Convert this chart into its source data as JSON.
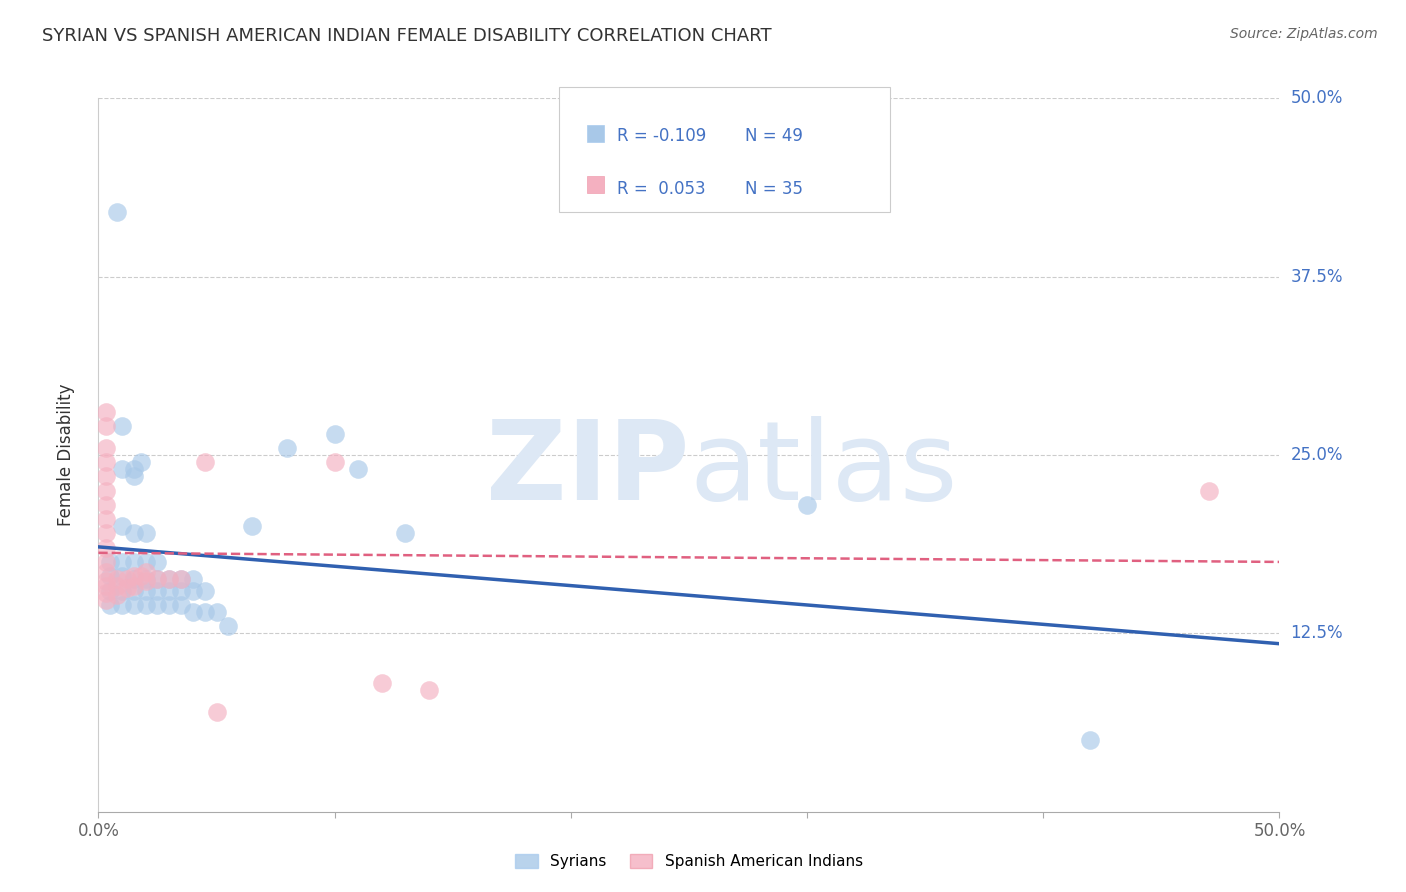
{
  "title": "SYRIAN VS SPANISH AMERICAN INDIAN FEMALE DISABILITY CORRELATION CHART",
  "source": "Source: ZipAtlas.com",
  "ylabel": "Female Disability",
  "ytick_labels": [
    "12.5%",
    "25.0%",
    "37.5%",
    "50.0%"
  ],
  "legend_blue_r": "-0.109",
  "legend_blue_n": "49",
  "legend_pink_r": "0.053",
  "legend_pink_n": "35",
  "legend_blue_label": "Syrians",
  "legend_pink_label": "Spanish American Indians",
  "blue_color": "#a8c8e8",
  "pink_color": "#f4b0c0",
  "blue_line_color": "#3060b0",
  "pink_line_color": "#e06080",
  "blue_scatter": [
    [
      0.008,
      0.42
    ],
    [
      0.01,
      0.27
    ],
    [
      0.01,
      0.24
    ],
    [
      0.015,
      0.24
    ],
    [
      0.015,
      0.235
    ],
    [
      0.018,
      0.245
    ],
    [
      0.01,
      0.2
    ],
    [
      0.015,
      0.195
    ],
    [
      0.02,
      0.195
    ],
    [
      0.005,
      0.175
    ],
    [
      0.01,
      0.175
    ],
    [
      0.015,
      0.175
    ],
    [
      0.02,
      0.175
    ],
    [
      0.025,
      0.175
    ],
    [
      0.005,
      0.165
    ],
    [
      0.01,
      0.165
    ],
    [
      0.015,
      0.163
    ],
    [
      0.02,
      0.163
    ],
    [
      0.025,
      0.163
    ],
    [
      0.03,
      0.163
    ],
    [
      0.035,
      0.163
    ],
    [
      0.04,
      0.163
    ],
    [
      0.005,
      0.155
    ],
    [
      0.01,
      0.155
    ],
    [
      0.015,
      0.155
    ],
    [
      0.02,
      0.155
    ],
    [
      0.025,
      0.155
    ],
    [
      0.03,
      0.155
    ],
    [
      0.035,
      0.155
    ],
    [
      0.04,
      0.155
    ],
    [
      0.045,
      0.155
    ],
    [
      0.005,
      0.145
    ],
    [
      0.01,
      0.145
    ],
    [
      0.015,
      0.145
    ],
    [
      0.02,
      0.145
    ],
    [
      0.025,
      0.145
    ],
    [
      0.03,
      0.145
    ],
    [
      0.035,
      0.145
    ],
    [
      0.04,
      0.14
    ],
    [
      0.045,
      0.14
    ],
    [
      0.05,
      0.14
    ],
    [
      0.055,
      0.13
    ],
    [
      0.065,
      0.2
    ],
    [
      0.08,
      0.255
    ],
    [
      0.1,
      0.265
    ],
    [
      0.11,
      0.24
    ],
    [
      0.13,
      0.195
    ],
    [
      0.3,
      0.215
    ],
    [
      0.42,
      0.05
    ]
  ],
  "pink_scatter": [
    [
      0.003,
      0.28
    ],
    [
      0.003,
      0.27
    ],
    [
      0.003,
      0.255
    ],
    [
      0.003,
      0.245
    ],
    [
      0.003,
      0.235
    ],
    [
      0.003,
      0.225
    ],
    [
      0.003,
      0.215
    ],
    [
      0.003,
      0.205
    ],
    [
      0.003,
      0.195
    ],
    [
      0.003,
      0.185
    ],
    [
      0.003,
      0.175
    ],
    [
      0.003,
      0.168
    ],
    [
      0.003,
      0.162
    ],
    [
      0.003,
      0.158
    ],
    [
      0.003,
      0.153
    ],
    [
      0.003,
      0.148
    ],
    [
      0.008,
      0.163
    ],
    [
      0.008,
      0.158
    ],
    [
      0.008,
      0.152
    ],
    [
      0.012,
      0.163
    ],
    [
      0.012,
      0.157
    ],
    [
      0.015,
      0.165
    ],
    [
      0.015,
      0.158
    ],
    [
      0.018,
      0.165
    ],
    [
      0.02,
      0.168
    ],
    [
      0.02,
      0.162
    ],
    [
      0.025,
      0.163
    ],
    [
      0.03,
      0.163
    ],
    [
      0.035,
      0.163
    ],
    [
      0.045,
      0.245
    ],
    [
      0.1,
      0.245
    ],
    [
      0.14,
      0.085
    ],
    [
      0.47,
      0.225
    ],
    [
      0.05,
      0.07
    ],
    [
      0.12,
      0.09
    ]
  ],
  "xmin": 0.0,
  "xmax": 0.5,
  "ymin": 0.0,
  "ymax": 0.5,
  "ytick_vals": [
    0.125,
    0.25,
    0.375,
    0.5
  ],
  "xtick_vals": [
    0.0,
    0.1,
    0.2,
    0.3,
    0.4,
    0.5
  ],
  "grid_color": "#cccccc",
  "background_color": "#ffffff",
  "title_fontsize": 13,
  "source_fontsize": 10,
  "tick_label_color": "#4472c4",
  "text_color": "#333333"
}
